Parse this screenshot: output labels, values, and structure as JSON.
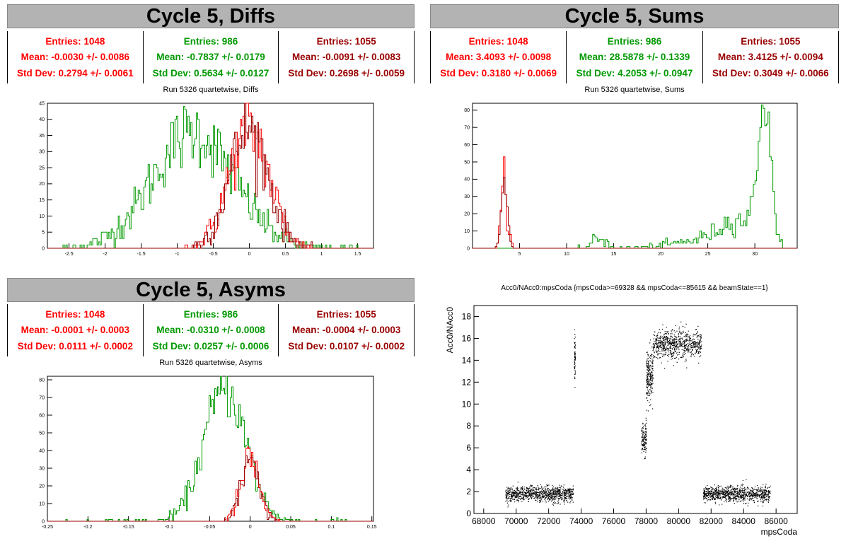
{
  "colors": {
    "run_a": "#ff0000",
    "run_b": "#009900",
    "run_c": "#990000"
  },
  "panels": {
    "diffs": {
      "title": "Cycle 5, Diffs",
      "subtitle": "Run 5326 quartetwise, Diffs",
      "stats": [
        {
          "entries": "Entries: 1048",
          "mean": "Mean: -0.0030 +/- 0.0086",
          "std": "Std Dev: 0.2794 +/- 0.0061"
        },
        {
          "entries": "Entries: 986",
          "mean": "Mean: -0.7837 +/- 0.0179",
          "std": "Std Dev: 0.5634 +/- 0.0127"
        },
        {
          "entries": "Entries: 1055",
          "mean": "Mean: -0.0091 +/- 0.0083",
          "std": "Std Dev: 0.2698 +/- 0.0059"
        }
      ]
    },
    "sums": {
      "title": "Cycle 5, Sums",
      "subtitle": "Run 5326 quartetwise, Sums",
      "stats": [
        {
          "entries": "Entries: 1048",
          "mean": "Mean: 3.4093 +/- 0.0098",
          "std": "Std Dev: 0.3180 +/- 0.0069"
        },
        {
          "entries": "Entries: 986",
          "mean": "Mean: 28.5878 +/- 0.1339",
          "std": "Std Dev: 4.2053 +/- 0.0947"
        },
        {
          "entries": "Entries: 1055",
          "mean": "Mean: 3.4125 +/- 0.0094",
          "std": "Std Dev: 0.3049 +/- 0.0066"
        }
      ]
    },
    "asyms": {
      "title": "Cycle 5, Asyms",
      "subtitle": "Run 5326 quartetwise, Asyms",
      "stats": [
        {
          "entries": "Entries: 1048",
          "mean": "Mean: -0.0001 +/- 0.0003",
          "std": "Std Dev: 0.0111 +/- 0.0002"
        },
        {
          "entries": "Entries: 986",
          "mean": "Mean: -0.0310 +/- 0.0008",
          "std": "Std Dev: 0.0257 +/- 0.0006"
        },
        {
          "entries": "Entries: 1055",
          "mean": "Mean: -0.0004 +/- 0.0003",
          "std": "Std Dev: 0.0107 +/- 0.0002"
        }
      ]
    },
    "scatter": {
      "subtitle": "Acc0/NAcc0:mpsCoda {mpsCoda>=69328 && mpsCoda<=85615 && beamState==1}"
    }
  },
  "chart_data": [
    {
      "type": "histogram",
      "title": "Run 5326 quartetwise, Diffs",
      "xlim": [
        -2.8,
        1.72
      ],
      "ylim": [
        0,
        45
      ],
      "xticks": [
        -2.5,
        -2,
        -1.5,
        -1,
        -0.5,
        0,
        0.5,
        1,
        1.5
      ],
      "xtick_labels": [
        "-2.5",
        "-2",
        "-1.5",
        "-1",
        "-0.5",
        "0",
        "0.5",
        "1",
        "1.5"
      ],
      "yticks": [
        0,
        5,
        10,
        15,
        20,
        25,
        30,
        35,
        40,
        45
      ],
      "series": [
        {
          "color_key": "run_b",
          "gaussians": [
            [
              -0.78,
              0.5634,
              36
            ]
          ],
          "range": [
            -2.6,
            1.5
          ]
        },
        {
          "color_key": "run_a",
          "gaussians": [
            [
              -0.003,
              0.2794,
              37
            ]
          ],
          "range": [
            -0.9,
            0.9
          ]
        },
        {
          "color_key": "run_c",
          "gaussians": [
            [
              -0.009,
              0.2698,
              37
            ]
          ],
          "range": [
            -0.9,
            0.9
          ]
        }
      ]
    },
    {
      "type": "histogram",
      "title": "Run 5326 quartetwise, Sums",
      "xlim": [
        0,
        34.5
      ],
      "ylim": [
        0,
        84
      ],
      "xticks": [
        5,
        10,
        15,
        20,
        25,
        30
      ],
      "xtick_labels": [
        "5",
        "10",
        "15",
        "20",
        "25",
        "30"
      ],
      "yticks": [
        0,
        10,
        20,
        30,
        40,
        50,
        60,
        70,
        80
      ],
      "series": [
        {
          "color_key": "run_b",
          "gaussians": [
            [
              31.0,
              0.7,
              78
            ],
            [
              28.3,
              2.0,
              15
            ],
            [
              13.5,
              0.7,
              6
            ],
            [
              24,
              3,
              4
            ]
          ],
          "range": [
            11,
            33
          ]
        },
        {
          "color_key": "run_a",
          "gaussians": [
            [
              3.41,
              0.318,
              40
            ]
          ],
          "range": [
            2.5,
            4.4
          ]
        },
        {
          "color_key": "run_c",
          "gaussians": [
            [
              3.41,
              0.305,
              40
            ]
          ],
          "range": [
            2.5,
            4.4
          ]
        }
      ]
    },
    {
      "type": "histogram",
      "title": "Run 5326 quartetwise, Asyms",
      "xlim": [
        -0.25,
        0.152
      ],
      "ylim": [
        0,
        82
      ],
      "xticks": [
        -0.25,
        -0.2,
        -0.15,
        -0.1,
        -0.05,
        0,
        0.05,
        0.1,
        0.15
      ],
      "xtick_labels": [
        "-0.25",
        "-0.2",
        "-0.15",
        "-0.1",
        "-0.05",
        "0",
        "0.05",
        "0.1",
        "0.15"
      ],
      "yticks": [
        0,
        10,
        20,
        30,
        40,
        50,
        60,
        70,
        80
      ],
      "series": [
        {
          "color_key": "run_b",
          "gaussians": [
            [
              -0.031,
              0.0257,
              75
            ]
          ],
          "range": [
            -0.23,
            0.13
          ]
        },
        {
          "color_key": "run_a",
          "gaussians": [
            [
              -0.0001,
              0.0111,
              35
            ]
          ],
          "range": [
            -0.04,
            0.04
          ]
        },
        {
          "color_key": "run_c",
          "gaussians": [
            [
              -0.0004,
              0.0107,
              35
            ]
          ],
          "range": [
            -0.04,
            0.04
          ]
        }
      ]
    },
    {
      "type": "scatter",
      "title": "Acc0/NAcc0:mpsCoda {mpsCoda>=69328 && mpsCoda<=85615 && beamState==1}",
      "xlabel": "mpsCoda",
      "ylabel": "Acc0/NAcc0",
      "xlim": [
        67400,
        87300
      ],
      "ylim": [
        0,
        19
      ],
      "xticks": [
        68000,
        70000,
        72000,
        74000,
        76000,
        78000,
        80000,
        82000,
        84000,
        86000
      ],
      "xtick_labels": [
        "68000",
        "70000",
        "72000",
        "74000",
        "76000",
        "78000",
        "80000",
        "82000",
        "84000",
        "86000"
      ],
      "yticks": [
        0,
        2,
        4,
        6,
        8,
        10,
        12,
        14,
        16,
        18
      ],
      "ytick_labels": [
        "0",
        "2",
        "4",
        "6",
        "8",
        "10",
        "12",
        "14",
        "16",
        "18"
      ],
      "clusters": [
        {
          "x": [
            69328,
            73500
          ],
          "y_center": 1.8,
          "y_spread": 0.7,
          "n": 900
        },
        {
          "x": [
            73560,
            73620
          ],
          "y_center": 14.5,
          "y_spread": 2.0,
          "n": 60
        },
        {
          "x": [
            77700,
            78000
          ],
          "y_center": 6.8,
          "y_spread": 1.5,
          "n": 120
        },
        {
          "x": [
            78000,
            78400
          ],
          "y_center": 12.5,
          "y_spread": 2.5,
          "n": 220
        },
        {
          "x": [
            78400,
            81400
          ],
          "y_center": 15.5,
          "y_spread": 1.3,
          "n": 700
        },
        {
          "x": [
            81500,
            85615
          ],
          "y_center": 1.8,
          "y_spread": 0.7,
          "n": 900
        }
      ]
    }
  ]
}
